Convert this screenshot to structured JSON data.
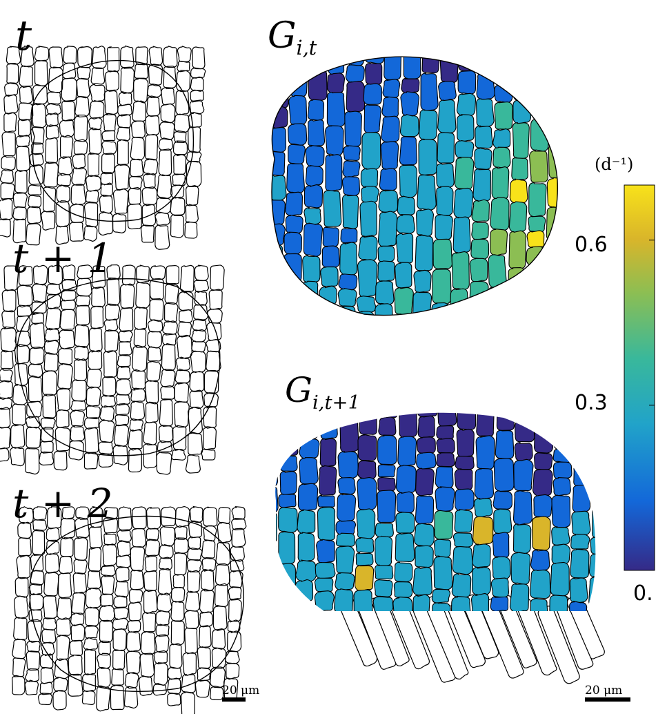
{
  "labels": {
    "t0": "t",
    "t1": "t + 1",
    "t2": "t + 2",
    "g_t_main": "G",
    "g_t_sub": "i,t",
    "g_t1_main": "G",
    "g_t1_sub": "i,t+1"
  },
  "colorbar": {
    "unit": "(d⁻¹)",
    "ticks": [
      "0.6",
      "0.3",
      "0."
    ],
    "tick_values": [
      0.6,
      0.3,
      0.0
    ],
    "range": [
      0.0,
      0.7
    ],
    "colormap": [
      "#352a87",
      "#1368d9",
      "#21a3c9",
      "#39b89b",
      "#8cbe53",
      "#d9b52a",
      "#f8e21a"
    ]
  },
  "scalebars": {
    "left": "20 μm",
    "right": "20 μm"
  },
  "colors": {
    "outline": "#000000",
    "unstained_cell": "#ffffff"
  }
}
